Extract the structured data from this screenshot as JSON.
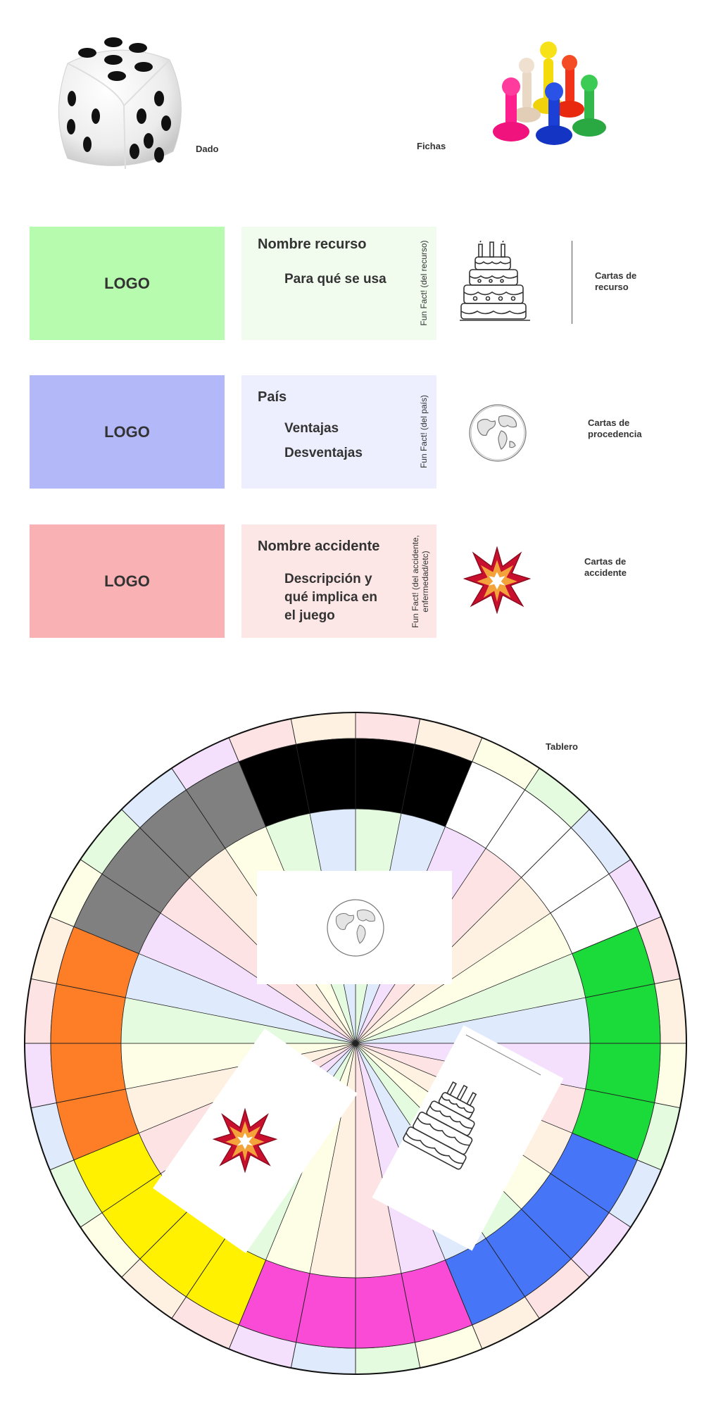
{
  "top": {
    "dice_label": "Dado",
    "pieces_label": "Fichas"
  },
  "cards": {
    "logo_text": "LOGO",
    "resource": {
      "title": "Nombre recurso",
      "line1": "Para qué se usa",
      "fun_fact": "Fun Fact! (del recurso)",
      "caption": "Cartas de recurso",
      "color_logo": "#b7fbae",
      "color_body": "#f1fcef"
    },
    "origin": {
      "title": "País",
      "line1": "Ventajas",
      "line2": "Desventajas",
      "fun_fact": "Fun Fact! (del país)",
      "caption": "Cartas de procedencia",
      "color_logo": "#b2b8f8",
      "color_body": "#edeffe"
    },
    "accident": {
      "title": "Nombre accidente",
      "line1": "Descripción y",
      "line2": "qué implica en",
      "line3": "el juego",
      "fun_fact_1": "Fun Fact! (del accidente,",
      "fun_fact_2": "enfermedad/etc)",
      "caption": "Cartas de accidente",
      "color_logo": "#f9b1b3",
      "color_body": "#fde6e6"
    }
  },
  "board": {
    "label": "Tablero",
    "track_colors": [
      "#000000",
      "#ffffff",
      "#1adb3a",
      "#4675f7",
      "#f94bd6",
      "#fff100",
      "#fd7e26",
      "#808080"
    ],
    "pastel_colors": [
      "#fde3e3",
      "#fef1e1",
      "#fefde5",
      "#e5fbe0",
      "#dfeafc",
      "#f4e0fc"
    ]
  }
}
